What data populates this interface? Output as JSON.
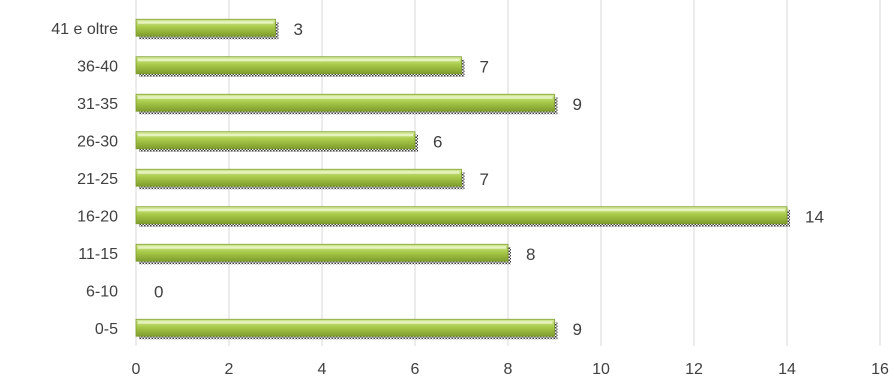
{
  "chart_data": {
    "type": "bar",
    "orientation": "horizontal",
    "title": "",
    "xlabel": "",
    "ylabel": "",
    "categories": [
      "0-5",
      "6-10",
      "11-15",
      "16-20",
      "21-25",
      "26-30",
      "31-35",
      "36-40",
      "41 e oltre"
    ],
    "values": [
      9,
      0,
      8,
      14,
      7,
      6,
      9,
      7,
      3
    ],
    "value_labels": [
      "9",
      "0",
      "8",
      "14",
      "7",
      "6",
      "9",
      "7",
      "3"
    ],
    "xlim": [
      0,
      16
    ],
    "xticks": [
      0,
      2,
      4,
      6,
      8,
      10,
      12,
      14,
      16
    ],
    "xtick_labels": [
      "0",
      "2",
      "4",
      "6",
      "8",
      "10",
      "12",
      "14",
      "16"
    ],
    "grid": "vertical",
    "legend": "none",
    "colors": {
      "bar_light": "#d6ea9c",
      "bar_mid": "#a9cb4a",
      "bar_dark": "#7e9c2c",
      "bar_shadow": "#3a3a3a",
      "grid": "#d9d9d9",
      "text": "#404040"
    }
  }
}
